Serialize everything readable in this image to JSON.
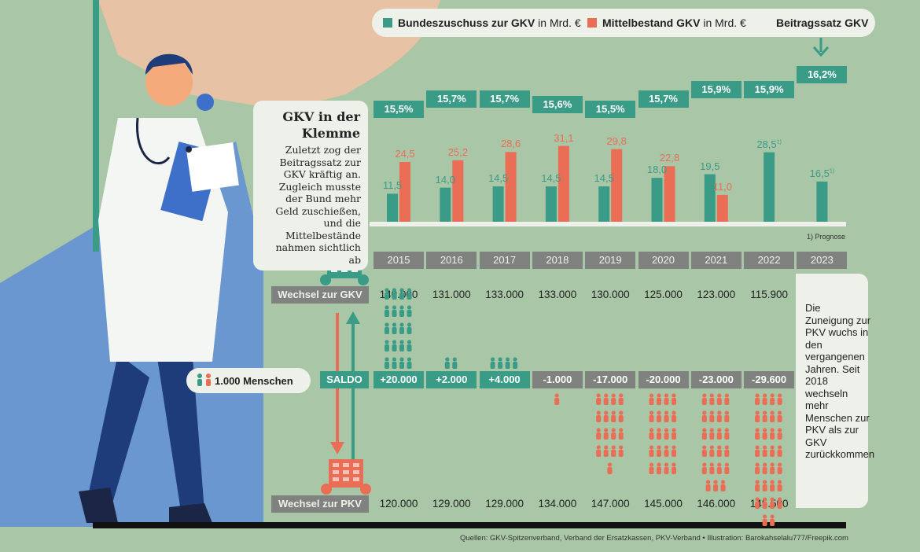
{
  "legend": {
    "bundeszuschuss_bold": "Bundeszuschuss zur GKV",
    "bundeszuschuss_unit": " in Mrd. €",
    "mittelbestand_bold": "Mittelbestand GKV",
    "mittelbestand_unit": " in Mrd. €",
    "beitragssatz": "Beitragssatz GKV"
  },
  "intro": {
    "title": "GKV in der Klemme",
    "text": "Zuletzt zog der Beitragssatz zur GKV kräftig an. Zugleich musste der Bund mehr Geld zuschießen, und die Mittelbestände nahmen sichtlich ab"
  },
  "footnote": "1) Prognose",
  "labels": {
    "wechsel_gkv": "Wechsel zur GKV",
    "wechsel_pkv": "Wechsel zur PKV",
    "saldo": "SALDO",
    "people_key": "1.000 Menschen"
  },
  "note": "Die Zuneigung zur PKV wuchs in den vergangenen Jahren. Seit 2018 wechseln mehr Menschen zur PKV als zur GKV zurückkommen",
  "source": "Quellen: GKV-Spitzenverband, Verband der Ersatzkassen, PKV-Verband • Illustration: Barokahselalu777/Freepik.com",
  "colors": {
    "teal": "#3a9c87",
    "orange": "#ea6d56",
    "gray": "#7f827e",
    "background": "#a9c6a6",
    "panel": "#eef1ea"
  },
  "chart_data": {
    "type": "bar",
    "categories": [
      "2015",
      "2016",
      "2017",
      "2018",
      "2019",
      "2020",
      "2021",
      "2022",
      "2023"
    ],
    "series": [
      {
        "name": "Bundeszuschuss zur GKV in Mrd. €",
        "values": [
          11.5,
          14.0,
          14.5,
          14.5,
          14.5,
          18.0,
          19.5,
          28.5,
          16.5
        ],
        "labels": [
          "11,5",
          "14,0",
          "14,5",
          "14,5",
          "14,5",
          "18,0",
          "19,5",
          "28,5",
          "16,5"
        ],
        "footnoted": [
          false,
          false,
          false,
          false,
          false,
          false,
          false,
          true,
          true
        ]
      },
      {
        "name": "Mittelbestand GKV in Mrd. €",
        "values": [
          24.5,
          25.2,
          28.6,
          31.1,
          29.8,
          22.8,
          11.0,
          null,
          null
        ],
        "labels": [
          "24,5",
          "25,2",
          "28,6",
          "31,1",
          "29,8",
          "22,8",
          "11,0",
          "",
          ""
        ]
      }
    ],
    "beitragssatz": [
      "15,5%",
      "15,7%",
      "15,7%",
      "15,6%",
      "15,5%",
      "15,7%",
      "15,9%",
      "15,9%",
      "16,2%"
    ],
    "beitragssatz_values": [
      15.5,
      15.7,
      15.7,
      15.6,
      15.5,
      15.7,
      15.9,
      15.9,
      16.2
    ],
    "wechsel_zur_gkv": [
      "140.000",
      "131.000",
      "133.000",
      "133.000",
      "130.000",
      "125.000",
      "123.000",
      "115.900"
    ],
    "wechsel_zur_pkv": [
      "120.000",
      "129.000",
      "129.000",
      "134.000",
      "147.000",
      "145.000",
      "146.000",
      "145.500"
    ],
    "saldo": [
      "+20.000",
      "+2.000",
      "+4.000",
      "-1.000",
      "-17.000",
      "-20.000",
      "-23.000",
      "-29.600"
    ],
    "saldo_values": [
      20000,
      2000,
      4000,
      -1000,
      -17000,
      -20000,
      -23000,
      -29600
    ],
    "people_per_icon": 1000
  }
}
